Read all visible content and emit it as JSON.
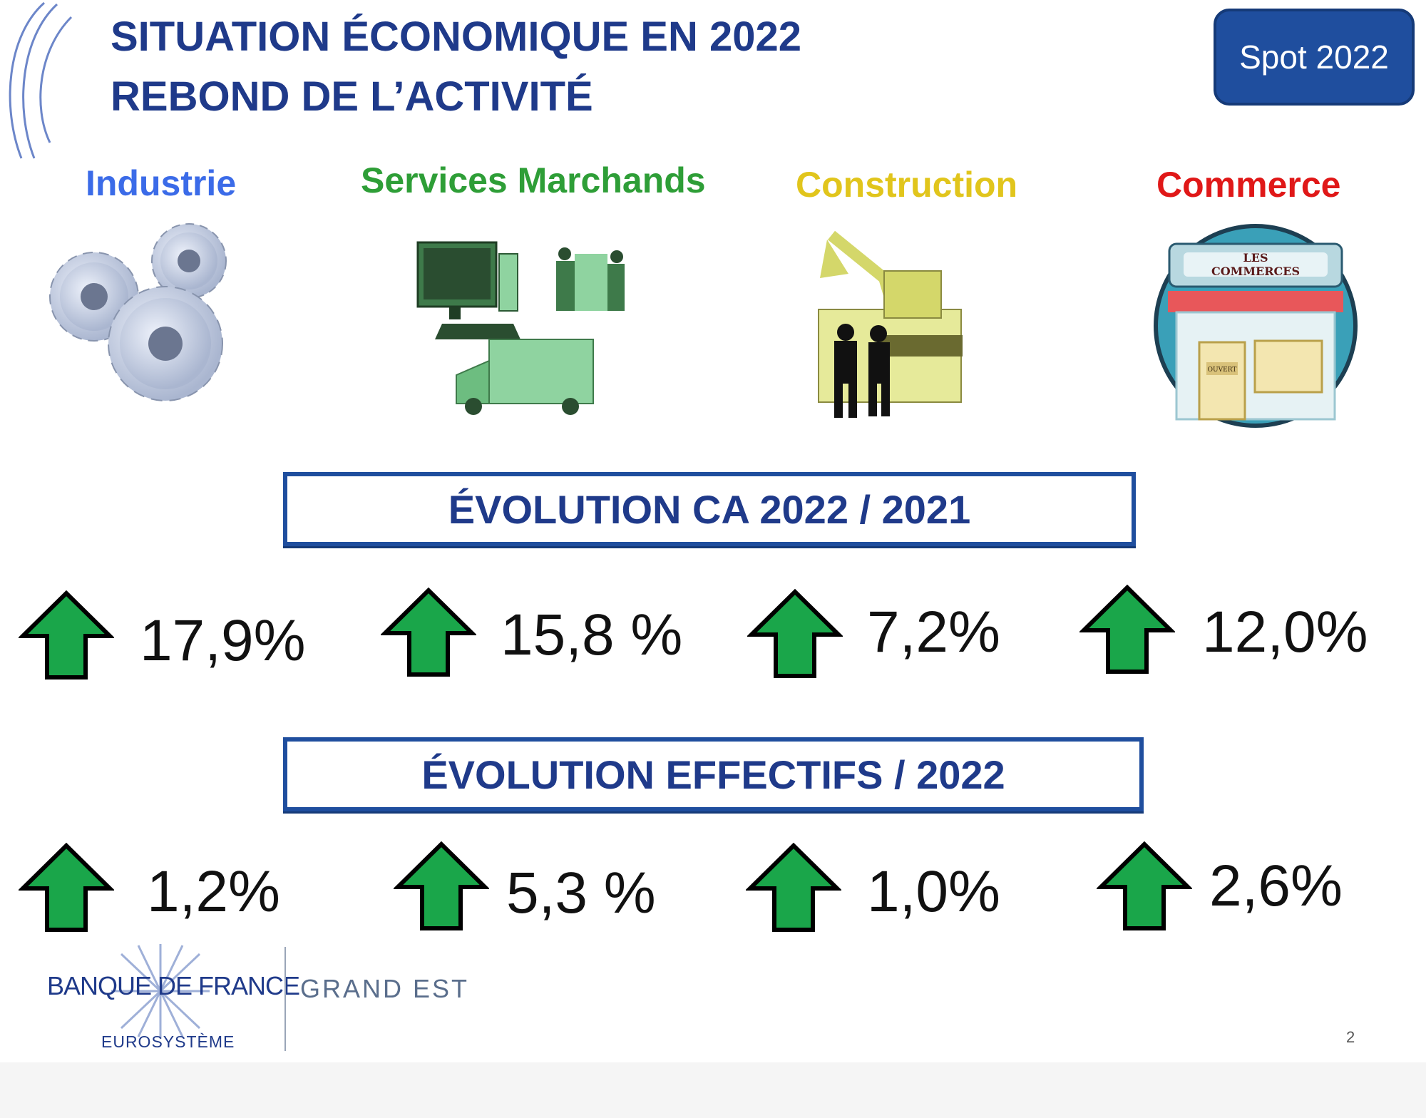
{
  "header": {
    "title_line1": "SITUATION ÉCONOMIQUE EN 2022",
    "title_line2": "REBOND DE L’ACTIVITÉ",
    "badge": "Spot 2022"
  },
  "sectors": [
    {
      "name": "Industrie",
      "color": "#3b6be8",
      "icon": "gears-icon"
    },
    {
      "name": "Services Marchands",
      "color": "#2e9e37",
      "icon": "computer-handshake-truck-icon"
    },
    {
      "name": "Construction",
      "color": "#e1c51c",
      "icon": "excavator-workers-icon"
    },
    {
      "name": "Commerce",
      "color": "#e01818",
      "icon": "shop-front-icon"
    }
  ],
  "shop_sign": {
    "label": "LES COMMERCES",
    "door_sign": "OUVERT"
  },
  "ca_section": {
    "title": "ÉVOLUTION CA 2022 / 2021",
    "values": [
      "17,9%",
      "15,8 %",
      "7,2%",
      "12,0%"
    ]
  },
  "effectifs_section": {
    "title": "ÉVOLUTION EFFECTIFS / 2022",
    "values": [
      "1,2%",
      "5,3 %",
      "1,0%",
      "2,6%"
    ]
  },
  "footer": {
    "bank_name": "BANQUE DE FRANCE",
    "bank_subtitle": "EUROSYSTÈME",
    "region": "GRAND EST",
    "page_number": "2"
  },
  "colors": {
    "title": "#1f3a8a",
    "frame": "#1f4e9e",
    "arrow_fill": "#1aa64a",
    "arrow_outline": "#000000"
  }
}
